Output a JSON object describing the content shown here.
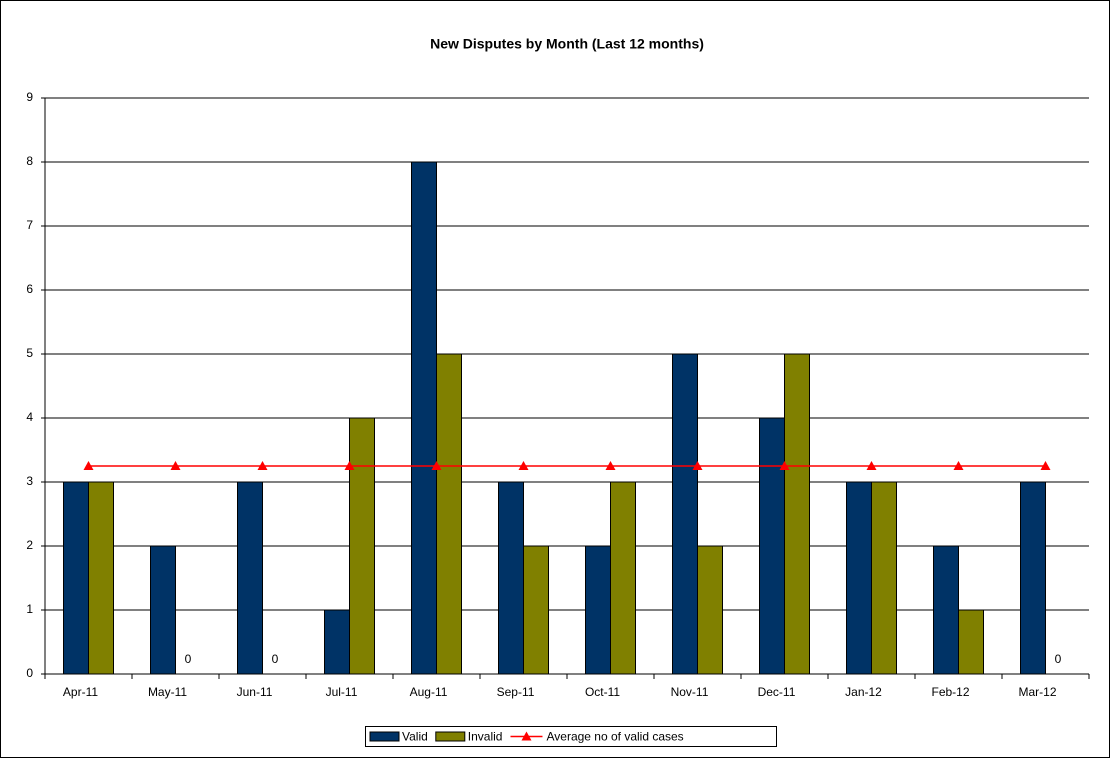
{
  "chart_data": {
    "type": "bar",
    "title": "New Disputes by Month (Last 12 months)",
    "categories": [
      "Apr-11",
      "May-11",
      "Jun-11",
      "Jul-11",
      "Aug-11",
      "Sep-11",
      "Oct-11",
      "Nov-11",
      "Dec-11",
      "Jan-12",
      "Feb-12",
      "Mar-12"
    ],
    "series": [
      {
        "name": "Valid",
        "color": "#003366",
        "values": [
          3,
          2,
          3,
          1,
          8,
          3,
          2,
          5,
          4,
          3,
          2,
          3
        ]
      },
      {
        "name": "Invalid",
        "color": "#808000",
        "values": [
          3,
          0,
          0,
          4,
          5,
          2,
          3,
          2,
          5,
          3,
          1,
          0
        ]
      },
      {
        "name": "Average no of valid cases",
        "color": "#ff0000",
        "type": "line",
        "marker": "triangle",
        "values": [
          3.25,
          3.25,
          3.25,
          3.25,
          3.25,
          3.25,
          3.25,
          3.25,
          3.25,
          3.25,
          3.25,
          3.25
        ]
      }
    ],
    "ylim": [
      0,
      9
    ],
    "yticks": [
      0,
      1,
      2,
      3,
      4,
      5,
      6,
      7,
      8,
      9
    ],
    "grid": true,
    "legend": "bottom"
  }
}
